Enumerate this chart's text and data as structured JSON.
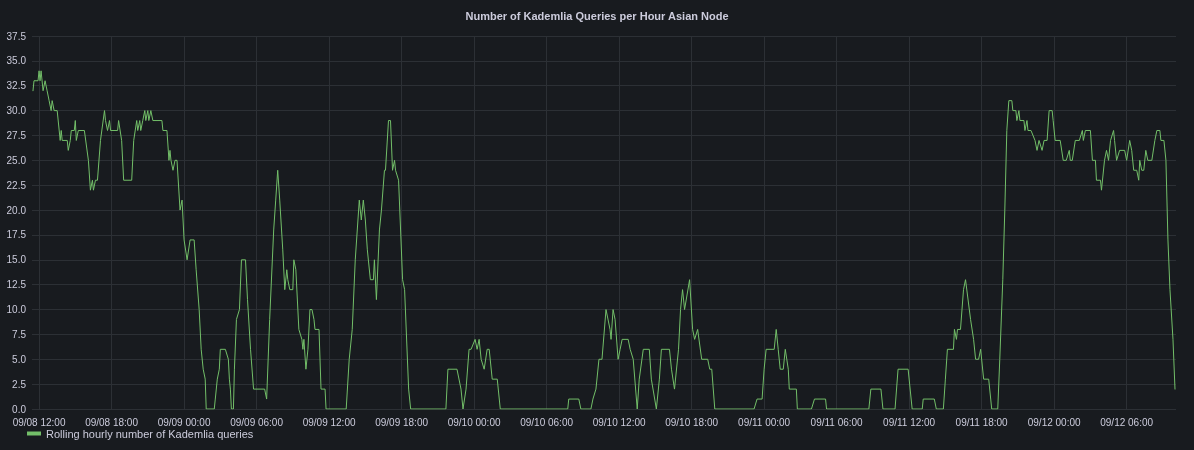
{
  "chart_data": {
    "type": "line",
    "title": "Number of Kademlia Queries per Hour Asian Node",
    "x": [
      "--09-08T11:30",
      "--09-08T11:35",
      "--09-08T11:55",
      "--09-08T12:00",
      "--09-08T12:05",
      "--09-08T12:10",
      "--09-08T12:20",
      "--09-08T12:30",
      "--09-08T12:40",
      "--09-08T12:50",
      "--09-08T13:00",
      "--09-08T13:05",
      "--09-08T13:15",
      "--09-08T13:30",
      "--09-08T13:45",
      "--09-08T13:50",
      "--09-08T13:55",
      "--09-08T14:20",
      "--09-08T14:25",
      "--09-08T14:35",
      "--09-08T14:40",
      "--09-08T14:55",
      "--09-08T15:00",
      "--09-08T15:05",
      "--09-08T15:15",
      "--09-08T15:45",
      "--09-08T16:05",
      "--09-08T16:15",
      "--09-08T16:25",
      "--09-08T16:30",
      "--09-08T16:40",
      "--09-08T16:50",
      "--09-08T17:05",
      "--09-08T17:25",
      "--09-08T17:30",
      "--09-08T17:40",
      "--09-08T17:50",
      "--09-08T17:55",
      "--09-08T18:30",
      "--09-08T18:35",
      "--09-08T18:50",
      "--09-08T19:00",
      "--09-08T19:40",
      "--09-08T19:50",
      "--09-08T20:05",
      "--09-08T20:10",
      "--09-08T20:20",
      "--09-08T20:25",
      "--09-08T20:35",
      "--09-08T20:45",
      "--09-08T20:50",
      "--09-08T21:00",
      "--09-08T21:05",
      "--09-08T21:15",
      "--09-08T21:25",
      "--09-08T22:10",
      "--09-08T22:15",
      "--09-08T22:35",
      "--09-08T22:45",
      "--09-08T22:50",
      "--09-08T22:55",
      "--09-08T23:05",
      "--09-08T23:15",
      "--09-08T23:25",
      "--09-08T23:40",
      "--09-08T23:50",
      "--09-09T00:00",
      "--09-09T00:15",
      "--09-09T00:30",
      "--09-09T00:50",
      "--09-09T01:00",
      "--09-09T01:15",
      "--09-09T01:25",
      "--09-09T01:35",
      "--09-09T01:45",
      "--09-09T01:50",
      "--09-09T02:30",
      "--09-09T02:35",
      "--09-09T02:45",
      "--09-09T02:55",
      "--09-09T03:00",
      "--09-09T03:25",
      "--09-09T03:40",
      "--09-09T03:45",
      "--09-09T03:50",
      "--09-09T03:55",
      "--09-09T04:05",
      "--09-09T04:10",
      "--09-09T04:20",
      "--09-09T04:35",
      "--09-09T04:45",
      "--09-09T05:05",
      "--09-09T05:15",
      "--09-09T05:30",
      "--09-09T05:45",
      "--09-09T06:40",
      "--09-09T06:50",
      "--09-09T07:05",
      "--09-09T07:25",
      "--09-09T07:35",
      "--09-09T07:45",
      "--09-09T07:55",
      "--09-09T08:10",
      "--09-09T08:20",
      "--09-09T08:30",
      "--09-09T08:35",
      "--09-09T08:45",
      "--09-09T09:00",
      "--09-09T09:05",
      "--09-09T09:15",
      "--09-09T09:30",
      "--09-09T09:45",
      "--09-09T09:50",
      "--09-09T09:55",
      "--09-09T10:05",
      "--09-09T10:15",
      "--09-09T10:25",
      "--09-09T10:35",
      "--09-09T10:45",
      "--09-09T10:50",
      "--09-09T11:10",
      "--09-09T11:20",
      "--09-09T11:40",
      "--09-09T11:45",
      "--09-09T13:25",
      "--09-09T13:40",
      "--09-09T13:55",
      "--09-09T14:10",
      "--09-09T14:30",
      "--09-09T14:40",
      "--09-09T14:50",
      "--09-09T15:00",
      "--09-09T15:10",
      "--09-09T15:25",
      "--09-09T15:40",
      "--09-09T15:45",
      "--09-09T15:55",
      "--09-09T16:10",
      "--09-09T16:20",
      "--09-09T16:35",
      "--09-09T16:40",
      "--09-09T16:55",
      "--09-09T17:05",
      "--09-09T17:15",
      "--09-09T17:25",
      "--09-09T17:30",
      "--09-09T17:45",
      "--09-09T18:05",
      "--09-09T18:15",
      "--09-09T18:35",
      "--09-09T18:45",
      "--09-09T21:40",
      "--09-09T21:50",
      "--09-09T22:35",
      "--09-09T22:55",
      "--09-09T23:05",
      "--09-09T23:20",
      "--09-09T23:35",
      "--09-09T23:45",
      "--09-10T00:05",
      "--09-10T00:15",
      "--09-10T00:25",
      "--09-10T00:35",
      "--09-10T00:50",
      "--09-10T01:05",
      "--09-10T01:15",
      "--09-10T01:30",
      "--09-10T01:55",
      "--09-10T02:10",
      "--09-10T07:45",
      "--09-10T07:50",
      "--09-10T08:40",
      "--09-10T08:50",
      "--09-10T09:40",
      "--09-10T09:50",
      "--09-10T10:05",
      "--09-10T10:20",
      "--09-10T10:35",
      "--09-10T10:55",
      "--09-10T11:15",
      "--09-10T11:20",
      "--09-10T11:30",
      "--09-10T11:40",
      "--09-10T11:55",
      "--09-10T12:05",
      "--09-10T12:15",
      "--09-10T12:45",
      "--09-10T12:55",
      "--09-10T13:10",
      "--09-10T13:30",
      "--09-10T13:40",
      "--09-10T14:00",
      "--09-10T14:30",
      "--09-10T14:40",
      "--09-10T15:05",
      "--09-10T15:20",
      "--09-10T15:30",
      "--09-10T16:10",
      "--09-10T16:20",
      "--09-10T16:35",
      "--09-10T16:55",
      "--09-10T17:05",
      "--09-10T17:15",
      "--09-10T17:25",
      "--09-10T17:50",
      "--09-10T18:05",
      "--09-10T18:15",
      "--09-10T18:30",
      "--09-10T18:50",
      "--09-10T19:20",
      "--09-10T19:30",
      "--09-10T19:40",
      "--09-10T19:55",
      "--09-10T23:10",
      "--09-10T23:25",
      "--09-10T23:50",
      "--09-11T00:00",
      "--09-11T00:10",
      "--09-11T00:50",
      "--09-11T01:00",
      "--09-11T01:10",
      "--09-11T01:20",
      "--09-11T01:35",
      "--09-11T01:45",
      "--09-11T02:00",
      "--09-11T02:05",
      "--09-11T02:40",
      "--09-11T02:45",
      "--09-11T03:55",
      "--09-11T04:10",
      "--09-11T05:05",
      "--09-11T05:10",
      "--09-11T08:40",
      "--09-11T08:50",
      "--09-11T09:40",
      "--09-11T09:50",
      "--09-11T10:50",
      "--09-11T11:05",
      "--09-11T11:55",
      "--09-11T12:15",
      "--09-11T13:05",
      "--09-11T13:10",
      "--09-11T14:05",
      "--09-11T14:15",
      "--09-11T14:50",
      "--09-11T15:00",
      "--09-11T15:10",
      "--09-11T15:40",
      "--09-11T15:45",
      "--09-11T15:55",
      "--09-11T16:00",
      "--09-11T16:15",
      "--09-11T16:30",
      "--09-11T16:40",
      "--09-11T17:05",
      "--09-11T17:20",
      "--09-11T17:30",
      "--09-11T17:45",
      "--09-11T17:55",
      "--09-11T18:10",
      "--09-11T18:35",
      "--09-11T18:45",
      "--09-11T18:50",
      "--09-11T19:20",
      "--09-11T19:30",
      "--09-11T19:45",
      "--09-11T19:55",
      "--09-11T20:05",
      "--09-11T20:15",
      "--09-11T20:30",
      "--09-11T20:35",
      "--09-11T20:50",
      "--09-11T20:55",
      "--09-11T21:05",
      "--09-11T21:10",
      "--09-11T21:30",
      "--09-11T21:35",
      "--09-11T21:45",
      "--09-11T21:50",
      "--09-11T22:05",
      "--09-11T22:25",
      "--09-11T22:35",
      "--09-11T22:45",
      "--09-11T23:00",
      "--09-11T23:10",
      "--09-11T23:25",
      "--09-11T23:35",
      "--09-11T23:50",
      "--09-11T23:55",
      "--09-12T00:05",
      "--09-12T00:30",
      "--09-12T00:45",
      "--09-12T01:00",
      "--09-12T01:15",
      "--09-12T01:20",
      "--09-12T01:30",
      "--09-12T01:45",
      "--09-12T02:05",
      "--09-12T02:20",
      "--09-12T02:25",
      "--09-12T02:35",
      "--09-12T03:00",
      "--09-12T03:10",
      "--09-12T03:25",
      "--09-12T03:30",
      "--09-12T03:50",
      "--09-12T03:55",
      "--09-12T04:10",
      "--09-12T04:20",
      "--09-12T04:30",
      "--09-12T04:40",
      "--09-12T04:55",
      "--09-12T05:00",
      "--09-12T05:10",
      "--09-12T05:25",
      "--09-12T05:50",
      "--09-12T06:00",
      "--09-12T06:15",
      "--09-12T06:25",
      "--09-12T06:35",
      "--09-12T06:50",
      "--09-12T07:00",
      "--09-12T07:05",
      "--09-12T07:15",
      "--09-12T07:25",
      "--09-12T07:35",
      "--09-12T07:45",
      "--09-12T08:05",
      "--09-12T08:20",
      "--09-12T08:30",
      "--09-12T08:45",
      "--09-12T08:50",
      "--09-12T09:05",
      "--09-12T09:15",
      "--09-12T09:25",
      "--09-12T09:35",
      "--09-12T09:50",
      "--09-12T10:00"
    ],
    "series": [
      {
        "name": "Rolling hourly number of Kademlia queries",
        "color": "#73bf69",
        "values": [
          32,
          33,
          33,
          34,
          33,
          34,
          32,
          33,
          32,
          31,
          30,
          31,
          30,
          30,
          27,
          28,
          27,
          27,
          26,
          27,
          28,
          28,
          29,
          27,
          28,
          28,
          25,
          22,
          23,
          22,
          23,
          23,
          27,
          30,
          29,
          28,
          29,
          28,
          28,
          29,
          27,
          23,
          23,
          27,
          29,
          28,
          29,
          28,
          29,
          30,
          29,
          30,
          29,
          30,
          29,
          29,
          28,
          28,
          25,
          26,
          25,
          24,
          25,
          25,
          20,
          21,
          17,
          15,
          17,
          17,
          14,
          10,
          6,
          4,
          3,
          0,
          0,
          1,
          3,
          4,
          6,
          6,
          5,
          3,
          2,
          0,
          0,
          4,
          9,
          10,
          15,
          15,
          11,
          6,
          2,
          2,
          1,
          9,
          18,
          21,
          24,
          21,
          16,
          12,
          14,
          13,
          12,
          12,
          15,
          14,
          8,
          7,
          6,
          7,
          4,
          6,
          10,
          10,
          9,
          8,
          8,
          2,
          2,
          0,
          0,
          5,
          8,
          15,
          21,
          19,
          21,
          19,
          16,
          13,
          13,
          15,
          11,
          18,
          20,
          24,
          24,
          29,
          29,
          24,
          25,
          24,
          23,
          13,
          12,
          2,
          0,
          0,
          4,
          4,
          2,
          0,
          2,
          6,
          6,
          7,
          6,
          7,
          5,
          4,
          6,
          6,
          3,
          3,
          0,
          0,
          1,
          1,
          0,
          0,
          1,
          2,
          5,
          5,
          10,
          8,
          7,
          10,
          9,
          5,
          6,
          7,
          7,
          6,
          5,
          0,
          3,
          6,
          6,
          3,
          0,
          3,
          6,
          6,
          4,
          2,
          6,
          10,
          12,
          10,
          13,
          8,
          7,
          8,
          5,
          5,
          4,
          4,
          0,
          0,
          1,
          1,
          4,
          6,
          6,
          8,
          6,
          4,
          4,
          6,
          4,
          2,
          2,
          0,
          0,
          1,
          1,
          0,
          0,
          2,
          2,
          0,
          0,
          4,
          4,
          0,
          0,
          1,
          1,
          0,
          0,
          3,
          6,
          6,
          8,
          7,
          8,
          8,
          12,
          13,
          9,
          7,
          5,
          5,
          6,
          3,
          3,
          1,
          0,
          0,
          5,
          13,
          20,
          28,
          31,
          31,
          30,
          30,
          29,
          30,
          29,
          29,
          28,
          29,
          28,
          28,
          27,
          26,
          27,
          26,
          27,
          27,
          30,
          30,
          29,
          27,
          27,
          25,
          25,
          26,
          25,
          25,
          27,
          27,
          28,
          27,
          28,
          28,
          25,
          25,
          23,
          23,
          22,
          25,
          26,
          25,
          27,
          28,
          27,
          25,
          26,
          26,
          25,
          27,
          26,
          24,
          24,
          23,
          25,
          24,
          24,
          26,
          25,
          25,
          27,
          28,
          28,
          27,
          27,
          25,
          17,
          12,
          7,
          2
        ]
      }
    ],
    "xlim": [
      "--09-08T11:25",
      "--09-12T10:05"
    ],
    "xticks": [
      {
        "value": "--09-08T12:00",
        "label": "09/08 12:00"
      },
      {
        "value": "--09-08T18:00",
        "label": "09/08 18:00"
      },
      {
        "value": "--09-09T00:00",
        "label": "09/09 00:00"
      },
      {
        "value": "--09-09T06:00",
        "label": "09/09 06:00"
      },
      {
        "value": "--09-09T12:00",
        "label": "09/09 12:00"
      },
      {
        "value": "--09-09T18:00",
        "label": "09/09 18:00"
      },
      {
        "value": "--09-10T00:00",
        "label": "09/10 00:00"
      },
      {
        "value": "--09-10T06:00",
        "label": "09/10 06:00"
      },
      {
        "value": "--09-10T12:00",
        "label": "09/10 12:00"
      },
      {
        "value": "--09-10T18:00",
        "label": "09/10 18:00"
      },
      {
        "value": "--09-11T00:00",
        "label": "09/11 00:00"
      },
      {
        "value": "--09-11T06:00",
        "label": "09/11 06:00"
      },
      {
        "value": "--09-11T12:00",
        "label": "09/11 12:00"
      },
      {
        "value": "--09-11T18:00",
        "label": "09/11 18:00"
      },
      {
        "value": "--09-12T00:00",
        "label": "09/12 00:00"
      },
      {
        "value": "--09-12T06:00",
        "label": "09/12 06:00"
      }
    ],
    "ylim": [
      0,
      37.5
    ],
    "yticks": [
      {
        "value": 0,
        "label": "0.0"
      },
      {
        "value": 2.5,
        "label": "2.5"
      },
      {
        "value": 5,
        "label": "5.0"
      },
      {
        "value": 7.5,
        "label": "7.5"
      },
      {
        "value": 10,
        "label": "10.0"
      },
      {
        "value": 12.5,
        "label": "12.5"
      },
      {
        "value": 15,
        "label": "15.0"
      },
      {
        "value": 17.5,
        "label": "17.5"
      },
      {
        "value": 20,
        "label": "20.0"
      },
      {
        "value": 22.5,
        "label": "22.5"
      },
      {
        "value": 25,
        "label": "25.0"
      },
      {
        "value": 27.5,
        "label": "27.5"
      },
      {
        "value": 30,
        "label": "30.0"
      },
      {
        "value": 32.5,
        "label": "32.5"
      },
      {
        "value": 35,
        "label": "35.0"
      },
      {
        "value": 37.5,
        "label": "37.5"
      }
    ],
    "grid": true,
    "legend": "bottom left",
    "marker": "none",
    "line_style": "solid"
  }
}
